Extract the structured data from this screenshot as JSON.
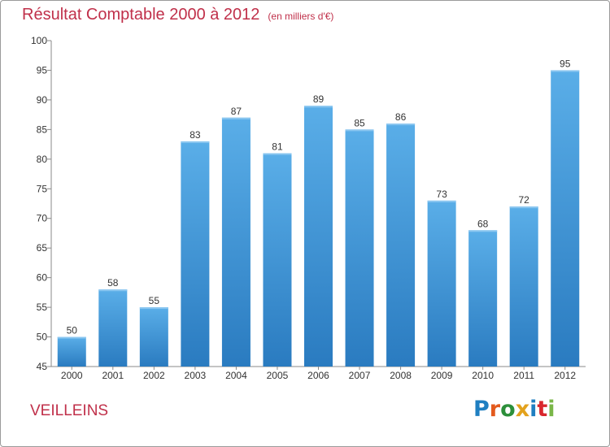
{
  "header": {
    "title": "Résultat Comptable 2000 à 2012",
    "subtitle": "(en milliers d'€)"
  },
  "footer": {
    "commune": "VEILLEINS"
  },
  "logo": {
    "letters": [
      "P",
      "r",
      "o",
      "x",
      "i",
      "t",
      "i"
    ],
    "colors": [
      "#1f7fc1",
      "#e35a1d",
      "#2c8f3a",
      "#e3a21d",
      "#1f7fc1",
      "#d9272e",
      "#7ab648"
    ]
  },
  "chart_data": {
    "type": "bar",
    "title": "Résultat Comptable 2000 à 2012",
    "units": "(en milliers d'€)",
    "categories": [
      "2000",
      "2001",
      "2002",
      "2003",
      "2004",
      "2005",
      "2006",
      "2007",
      "2008",
      "2009",
      "2010",
      "2011",
      "2012"
    ],
    "values": [
      50,
      58,
      55,
      83,
      87,
      81,
      89,
      85,
      86,
      73,
      68,
      72,
      95
    ],
    "ylim": [
      45,
      100
    ],
    "yticks": [
      45,
      50,
      55,
      60,
      65,
      70,
      75,
      80,
      85,
      90,
      95,
      100
    ],
    "xlabel": "",
    "ylabel": "",
    "grid": false,
    "bar_color": "#4a9fde",
    "bar_color_dark": "#2a7bc0"
  }
}
